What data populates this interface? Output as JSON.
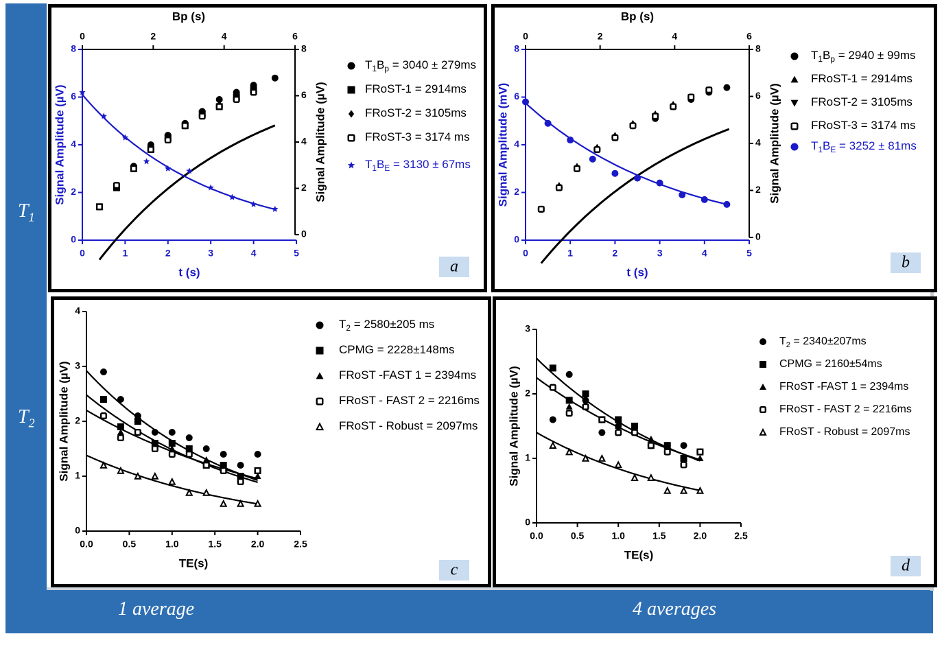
{
  "labels": {
    "row1": "T",
    "row1_sub": "1",
    "row2": "T",
    "row2_sub": "2",
    "col1": "1 average",
    "col2": "4 averages"
  },
  "colors": {
    "blue_frame": "#2e6fb3",
    "series_blue": "#1a1ac8",
    "black": "#000000",
    "tag_bg": "#c9dcf0"
  },
  "chart_data": [
    {
      "id": "a",
      "type": "scatter",
      "panel_label": "a",
      "title": "Bp (s)",
      "xlabel": "t (s)",
      "ylabel": "Signal Amplitude (µV)",
      "y2label": "Signal Amplitude (µV)",
      "xlim": [
        0,
        5
      ],
      "ylim": [
        0,
        8
      ],
      "x2lim": [
        0,
        6
      ],
      "y2lim": [
        0,
        8
      ],
      "xticks": [
        "0",
        "1",
        "2",
        "3",
        "4",
        "5"
      ],
      "yticks": [
        "0",
        "2",
        "4",
        "6",
        "8"
      ],
      "x2ticks": [
        "0",
        "2",
        "4",
        "6"
      ],
      "y2ticks": [
        "0",
        "2",
        "4",
        "6",
        "8"
      ],
      "series": [
        {
          "name": "T1Bp = 3040 ± 279ms",
          "legend": {
            "pre": "T",
            "sub": "1",
            "mid": "B",
            "sub2": "p",
            "post": " = 3040 ± 279ms"
          },
          "marker": "circle",
          "color": "#000000",
          "x": [
            0.4,
            0.8,
            1.2,
            1.6,
            2.0,
            2.4,
            2.8,
            3.2,
            3.6,
            4.0,
            4.5
          ],
          "y": [
            1.4,
            2.3,
            3.1,
            4.0,
            4.4,
            4.9,
            5.4,
            5.9,
            6.2,
            6.5,
            6.8
          ]
        },
        {
          "name": "FRoST-1 = 2914ms",
          "legend": {
            "pre": "FRoST-1 = 2914ms"
          },
          "marker": "square",
          "color": "#000000",
          "x": [
            0.4,
            0.8,
            1.2,
            1.6,
            2.0,
            2.4,
            2.8,
            3.2,
            3.6,
            4.0
          ],
          "y": [
            1.4,
            2.2,
            3.0,
            3.8,
            4.3,
            4.8,
            5.3,
            5.6,
            6.0,
            6.3
          ]
        },
        {
          "name": "FRoST-2 = 3105ms",
          "legend": {
            "pre": "FRoST-2 = 3105ms"
          },
          "marker": "diamond",
          "color": "#000000",
          "x": [
            0.4,
            0.8,
            1.2,
            1.6,
            2.0,
            2.4,
            2.8,
            3.2,
            3.6,
            4.0
          ],
          "y": [
            1.4,
            2.3,
            3.1,
            3.9,
            4.4,
            4.9,
            5.4,
            5.7,
            6.1,
            6.4
          ]
        },
        {
          "name": "FRoST-3 = 3174 ms",
          "legend": {
            "pre": "FRoST-3 =  3174 ms"
          },
          "marker": "opensquare",
          "color": "#000000",
          "x": [
            0.4,
            0.8,
            1.2,
            1.6,
            2.0,
            2.4,
            2.8,
            3.2,
            3.6,
            4.0
          ],
          "y": [
            1.4,
            2.3,
            3.0,
            3.8,
            4.2,
            4.8,
            5.2,
            5.6,
            5.9,
            6.2
          ]
        },
        {
          "name": "T1BE = 3130 ± 67ms",
          "legend": {
            "pre": "T",
            "sub": "1",
            "mid": "B",
            "sub2": "E",
            "post": " = 3130 ± 67ms"
          },
          "marker": "star",
          "color": "#1a1ac8",
          "x": [
            0.0,
            0.5,
            1.0,
            1.5,
            2.0,
            2.5,
            3.0,
            3.5,
            4.0,
            4.5
          ],
          "y": [
            6.2,
            5.2,
            4.3,
            3.3,
            3.0,
            2.9,
            2.2,
            1.8,
            1.5,
            1.3
          ]
        }
      ]
    },
    {
      "id": "b",
      "type": "scatter",
      "panel_label": "b",
      "title": "Bp (s)",
      "xlabel": "t (s)",
      "ylabel": "Signal Amplitude (mV)",
      "y2label": "Signal Amplitude (µV)",
      "xlim": [
        0,
        5
      ],
      "ylim": [
        0,
        8
      ],
      "x2lim": [
        0,
        6
      ],
      "y2lim": [
        0,
        8
      ],
      "xticks": [
        "0",
        "1",
        "2",
        "3",
        "4",
        "5"
      ],
      "yticks": [
        "0",
        "2",
        "4",
        "6",
        "8"
      ],
      "x2ticks": [
        "0",
        "2",
        "4",
        "6"
      ],
      "y2ticks": [
        "0",
        "2",
        "4",
        "6",
        "8"
      ],
      "series": [
        {
          "name": "T1Bp = 2940 ± 99ms",
          "legend": {
            "pre": "T",
            "sub": "1",
            "mid": "B",
            "sub2": "p",
            "post": " = 2940 ± 99ms"
          },
          "marker": "circle",
          "color": "#000000",
          "x": [
            0.35,
            0.75,
            1.15,
            1.6,
            2.0,
            2.4,
            2.9,
            3.3,
            3.7,
            4.1,
            4.5
          ],
          "y": [
            1.3,
            2.2,
            3.0,
            3.8,
            4.3,
            4.8,
            5.1,
            5.6,
            5.9,
            6.2,
            6.4
          ]
        },
        {
          "name": "FRoST-1 = 2914ms",
          "legend": {
            "pre": "FRoST-1 = 2914ms"
          },
          "marker": "triangle",
          "color": "#000000",
          "x": [
            0.35,
            0.75,
            1.15,
            1.6,
            2.0,
            2.4,
            2.9,
            3.3,
            3.7,
            4.1
          ],
          "y": [
            1.3,
            2.3,
            3.1,
            3.9,
            4.4,
            4.9,
            5.3,
            5.7,
            6.0,
            6.3
          ]
        },
        {
          "name": "FRoST-2 = 3105ms",
          "legend": {
            "pre": "FRoST-2 = 3105ms"
          },
          "marker": "downtriangle",
          "color": "#000000",
          "x": [
            0.35,
            0.75,
            1.15,
            1.6,
            2.0,
            2.4,
            2.9,
            3.3,
            3.7,
            4.1
          ],
          "y": [
            1.3,
            2.2,
            3.0,
            3.8,
            4.3,
            4.8,
            5.2,
            5.6,
            6.0,
            6.2
          ]
        },
        {
          "name": "FRoST-3 = 3174 ms",
          "legend": {
            "pre": "FRoST-3 =  3174 ms"
          },
          "marker": "opensquare",
          "color": "#000000",
          "x": [
            0.35,
            0.75,
            1.15,
            1.6,
            2.0,
            2.4,
            2.9,
            3.3,
            3.7,
            4.1
          ],
          "y": [
            1.3,
            2.2,
            3.0,
            3.8,
            4.3,
            4.8,
            5.2,
            5.6,
            6.0,
            6.3
          ]
        },
        {
          "name": "T1BE = 3252 ± 81ms",
          "legend": {
            "pre": "T",
            "sub": "1",
            "mid": "B",
            "sub2": "E",
            "post": " = 3252 ± 81ms"
          },
          "marker": "circle",
          "color": "#1a1ac8",
          "x": [
            0.0,
            0.5,
            1.0,
            1.5,
            2.0,
            2.5,
            3.0,
            3.5,
            4.0,
            4.5
          ],
          "y": [
            5.8,
            4.9,
            4.2,
            3.4,
            2.8,
            2.6,
            2.4,
            1.9,
            1.7,
            1.5
          ]
        }
      ]
    },
    {
      "id": "c",
      "type": "scatter",
      "panel_label": "c",
      "xlabel": "TE(s)",
      "ylabel": "Signal Amplitude (µV)",
      "xlim": [
        0,
        2.5
      ],
      "ylim": [
        0,
        4
      ],
      "xticks": [
        "0.0",
        "0.5",
        "1.0",
        "1.5",
        "2.0",
        "2.5"
      ],
      "yticks": [
        "0",
        "1",
        "2",
        "3",
        "4"
      ],
      "series": [
        {
          "name": "T2 = 2580±205 ms",
          "legend": {
            "pre": "T",
            "sub": "2",
            "post": " = 2580±205 ms"
          },
          "marker": "circle",
          "color": "#000000",
          "x": [
            0.2,
            0.4,
            0.6,
            0.8,
            1.0,
            1.2,
            1.4,
            1.6,
            1.8,
            2.0
          ],
          "y": [
            2.9,
            2.4,
            2.1,
            1.8,
            1.8,
            1.7,
            1.5,
            1.4,
            1.2,
            1.4
          ]
        },
        {
          "name": "CPMG = 2228±148ms",
          "legend": {
            "pre": "CPMG = 2228±148ms"
          },
          "marker": "square",
          "color": "#000000",
          "x": [
            0.2,
            0.4,
            0.6,
            0.8,
            1.0,
            1.2,
            1.4,
            1.6,
            1.8,
            2.0
          ],
          "y": [
            2.4,
            1.9,
            2.0,
            1.6,
            1.6,
            1.5,
            1.2,
            1.2,
            1.0,
            1.1
          ]
        },
        {
          "name": "FRoST -FAST 1 = 2394ms",
          "legend": {
            "pre": "FRoST -FAST 1 = 2394ms"
          },
          "marker": "triangle",
          "color": "#000000",
          "x": [
            0.2,
            0.4,
            0.6,
            0.8,
            1.0,
            1.2,
            1.4,
            1.6,
            1.8,
            2.0
          ],
          "y": [
            2.1,
            1.8,
            1.8,
            1.6,
            1.5,
            1.4,
            1.3,
            1.1,
            1.0,
            1.0
          ]
        },
        {
          "name": "FRoST - FAST 2 = 2216ms",
          "legend": {
            "pre": "FRoST - FAST 2 =  2216ms"
          },
          "marker": "opensquare",
          "color": "#000000",
          "x": [
            0.2,
            0.4,
            0.6,
            0.8,
            1.0,
            1.2,
            1.4,
            1.6,
            1.8,
            2.0
          ],
          "y": [
            2.1,
            1.7,
            1.8,
            1.5,
            1.4,
            1.4,
            1.2,
            1.1,
            0.9,
            1.1
          ]
        },
        {
          "name": "FRoST - Robust = 2097ms",
          "legend": {
            "pre": "FRoST - Robust = 2097ms"
          },
          "marker": "opentriangle",
          "color": "#000000",
          "x": [
            0.2,
            0.4,
            0.6,
            0.8,
            1.0,
            1.2,
            1.4,
            1.6,
            1.8,
            2.0
          ],
          "y": [
            1.2,
            1.1,
            1.0,
            1.0,
            0.9,
            0.7,
            0.7,
            0.5,
            0.5,
            0.5
          ]
        }
      ]
    },
    {
      "id": "d",
      "type": "scatter",
      "panel_label": "d",
      "xlabel": "TE(s)",
      "ylabel": "Signal Amplitude (µV)",
      "xlim": [
        0,
        2.5
      ],
      "ylim": [
        0,
        3
      ],
      "xticks": [
        "0.0",
        "0.5",
        "1.0",
        "1.5",
        "2.0",
        "2.5"
      ],
      "yticks": [
        "0",
        "1",
        "2",
        "3"
      ],
      "series": [
        {
          "name": "T2 = 2340±207ms",
          "legend": {
            "pre": "T",
            "sub": "2",
            "post": " = 2340±207ms"
          },
          "marker": "circle",
          "color": "#000000",
          "x": [
            0.2,
            0.4,
            0.6,
            0.8,
            1.0,
            1.2,
            1.4,
            1.6,
            1.8,
            2.0
          ],
          "y": [
            1.6,
            2.3,
            1.9,
            1.4,
            1.5,
            1.4,
            1.2,
            1.2,
            1.2,
            1.1
          ]
        },
        {
          "name": "CPMG = 2160±54ms",
          "legend": {
            "pre": "CPMG = 2160±54ms"
          },
          "marker": "square",
          "color": "#000000",
          "x": [
            0.2,
            0.4,
            0.6,
            0.8,
            1.0,
            1.2,
            1.4,
            1.6,
            1.8,
            2.0
          ],
          "y": [
            2.4,
            1.9,
            2.0,
            1.6,
            1.6,
            1.5,
            1.2,
            1.2,
            1.0,
            1.1
          ]
        },
        {
          "name": "FRoST -FAST 1 = 2394ms",
          "legend": {
            "pre": "FRoST -FAST 1 = 2394ms"
          },
          "marker": "triangle",
          "color": "#000000",
          "x": [
            0.2,
            0.4,
            0.6,
            0.8,
            1.0,
            1.2,
            1.4,
            1.6,
            1.8,
            2.0
          ],
          "y": [
            2.1,
            1.8,
            1.8,
            1.6,
            1.5,
            1.4,
            1.3,
            1.1,
            1.0,
            1.0
          ]
        },
        {
          "name": "FRoST - FAST 2 = 2216ms",
          "legend": {
            "pre": "FRoST - FAST 2 =  2216ms"
          },
          "marker": "opensquare",
          "color": "#000000",
          "x": [
            0.2,
            0.4,
            0.6,
            0.8,
            1.0,
            1.2,
            1.4,
            1.6,
            1.8,
            2.0
          ],
          "y": [
            2.1,
            1.7,
            1.8,
            1.6,
            1.4,
            1.4,
            1.2,
            1.1,
            0.9,
            1.1
          ]
        },
        {
          "name": "FRoST - Robust = 2097ms",
          "legend": {
            "pre": "FRoST - Robust = 2097ms"
          },
          "marker": "opentriangle",
          "color": "#000000",
          "x": [
            0.2,
            0.4,
            0.6,
            0.8,
            1.0,
            1.2,
            1.4,
            1.6,
            1.8,
            2.0
          ],
          "y": [
            1.2,
            1.1,
            1.0,
            1.0,
            0.9,
            0.7,
            0.7,
            0.5,
            0.5,
            0.5
          ]
        }
      ]
    }
  ]
}
